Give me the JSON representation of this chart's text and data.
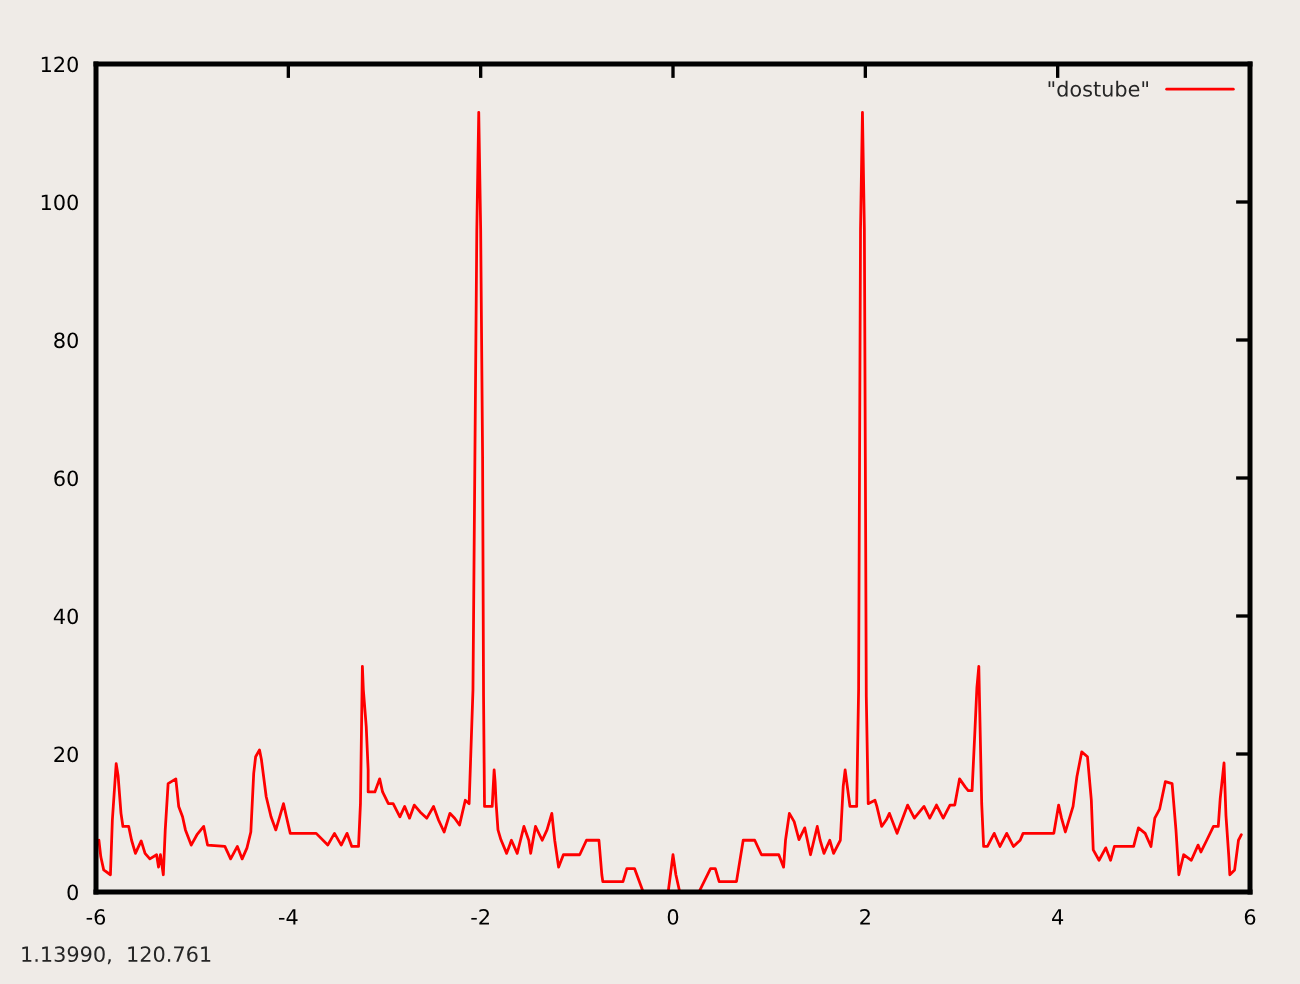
{
  "chart_data": {
    "type": "line",
    "x": [
      -5.97,
      -5.95,
      -5.92,
      -5.85,
      -5.83,
      -5.79,
      -5.77,
      -5.74,
      -5.72,
      -5.66,
      -5.63,
      -5.59,
      -5.53,
      -5.49,
      -5.44,
      -5.37,
      -5.35,
      -5.33,
      -5.3,
      -5.28,
      -5.25,
      -5.17,
      -5.14,
      -5.1,
      -5.07,
      -5.01,
      -4.95,
      -4.88,
      -4.84,
      -4.66,
      -4.6,
      -4.53,
      -4.48,
      -4.43,
      -4.39,
      -4.36,
      -4.34,
      -4.3,
      -4.28,
      -4.23,
      -4.18,
      -4.13,
      -4.09,
      -4.05,
      -4.02,
      -3.98,
      -3.71,
      -3.59,
      -3.52,
      -3.45,
      -3.39,
      -3.34,
      -3.27,
      -3.25,
      -3.23,
      -3.22,
      -3.19,
      -3.17,
      -3.17,
      -3.1,
      -3.05,
      -3.02,
      -2.96,
      -2.91,
      -2.84,
      -2.79,
      -2.74,
      -2.69,
      -2.63,
      -2.56,
      -2.49,
      -2.44,
      -2.38,
      -2.32,
      -2.27,
      -2.22,
      -2.16,
      -2.12,
      -2.08,
      -2.06,
      -2.04,
      -2.02,
      -2.0,
      -1.98,
      -1.97,
      -1.96,
      -1.88,
      -1.86,
      -1.85,
      -1.84,
      -1.82,
      -1.79,
      -1.73,
      -1.68,
      -1.62,
      -1.55,
      -1.5,
      -1.48,
      -1.43,
      -1.36,
      -1.31,
      -1.26,
      -1.23,
      -1.19,
      -1.14,
      -0.97,
      -0.9,
      -0.77,
      -0.74,
      -0.73,
      -0.52,
      -0.48,
      -0.4,
      -0.31,
      -0.05,
      0.0,
      0.03,
      0.07,
      0.27,
      0.39,
      0.44,
      0.48,
      0.66,
      0.73,
      0.85,
      0.92,
      1.1,
      1.15,
      1.17,
      1.21,
      1.26,
      1.31,
      1.37,
      1.43,
      1.5,
      1.53,
      1.57,
      1.63,
      1.67,
      1.74,
      1.77,
      1.79,
      1.84,
      1.91,
      1.93,
      1.94,
      1.95,
      1.97,
      1.99,
      2.0,
      2.01,
      2.03,
      2.1,
      2.12,
      2.17,
      2.22,
      2.25,
      2.33,
      2.44,
      2.51,
      2.61,
      2.67,
      2.74,
      2.81,
      2.88,
      2.93,
      2.98,
      3.04,
      3.07,
      3.11,
      3.14,
      3.16,
      3.18,
      3.19,
      3.21,
      3.23,
      3.27,
      3.34,
      3.4,
      3.47,
      3.54,
      3.61,
      3.64,
      3.96,
      4.01,
      4.04,
      4.08,
      4.16,
      4.2,
      4.25,
      4.31,
      4.35,
      4.37,
      4.43,
      4.5,
      4.55,
      4.59,
      4.79,
      4.84,
      4.91,
      4.97,
      5.01,
      5.06,
      5.12,
      5.19,
      5.23,
      5.26,
      5.31,
      5.39,
      5.46,
      5.49,
      5.55,
      5.62,
      5.67,
      5.69,
      5.73,
      5.75,
      5.78,
      5.79,
      5.84,
      5.88,
      5.91
    ],
    "series": [
      {
        "name": "\"dostube\"",
        "color": "#ff0000",
        "values": [
          7.5,
          5.1,
          3.2,
          2.5,
          10.4,
          18.6,
          16.8,
          11.4,
          9.5,
          9.5,
          7.5,
          5.6,
          7.4,
          5.6,
          4.8,
          5.4,
          3.6,
          5.4,
          2.5,
          9.0,
          15.7,
          16.4,
          12.4,
          10.9,
          9.0,
          6.8,
          8.3,
          9.5,
          6.8,
          6.6,
          4.8,
          6.6,
          4.8,
          6.4,
          8.7,
          17.2,
          19.6,
          20.6,
          19.2,
          13.8,
          10.9,
          9.0,
          10.9,
          12.8,
          10.9,
          8.5,
          8.5,
          6.8,
          8.5,
          6.8,
          8.5,
          6.6,
          6.6,
          12.8,
          32.7,
          29.3,
          24.0,
          17.7,
          14.5,
          14.5,
          16.4,
          14.5,
          12.8,
          12.8,
          10.9,
          12.4,
          10.7,
          12.6,
          11.6,
          10.7,
          12.4,
          10.5,
          8.7,
          11.4,
          10.7,
          9.7,
          13.3,
          12.8,
          29.3,
          63,
          96,
          113,
          96,
          63,
          28.3,
          12.4,
          12.4,
          17.7,
          16.0,
          13.0,
          9.0,
          7.6,
          5.6,
          7.5,
          5.6,
          9.5,
          7.5,
          5.6,
          9.5,
          7.5,
          9.0,
          11.4,
          7.5,
          3.6,
          5.4,
          5.4,
          7.5,
          7.5,
          2.5,
          1.5,
          1.5,
          3.4,
          3.4,
          0,
          0,
          5.4,
          2.5,
          0,
          0,
          3.4,
          3.4,
          1.5,
          1.5,
          7.5,
          7.5,
          5.4,
          5.4,
          3.6,
          7.5,
          11.4,
          10.2,
          7.6,
          9.3,
          5.4,
          9.5,
          7.5,
          5.6,
          7.5,
          5.6,
          7.5,
          15.3,
          17.7,
          12.4,
          12.4,
          29.3,
          63,
          96,
          113,
          96,
          63,
          28.3,
          12.8,
          13.3,
          12.4,
          9.5,
          10.5,
          11.4,
          8.5,
          12.6,
          10.7,
          12.4,
          10.7,
          12.6,
          10.7,
          12.6,
          12.6,
          16.4,
          15.2,
          14.7,
          14.7,
          23.5,
          29.6,
          32.7,
          26.1,
          12.8,
          6.6,
          6.6,
          8.5,
          6.6,
          8.5,
          6.6,
          7.5,
          8.5,
          8.5,
          12.6,
          10.7,
          8.7,
          12.4,
          16.7,
          20.3,
          19.6,
          13.3,
          6.1,
          4.6,
          6.4,
          4.6,
          6.6,
          6.6,
          9.3,
          8.5,
          6.6,
          10.7,
          12.0,
          16.0,
          15.7,
          9.0,
          2.5,
          5.4,
          4.6,
          6.8,
          5.8,
          7.5,
          9.5,
          9.5,
          13.5,
          18.7,
          11.1,
          5.1,
          2.5,
          3.2,
          7.5,
          8.3
        ]
      }
    ],
    "xlim": [
      -6,
      6
    ],
    "xticks": [
      -6,
      -4,
      -2,
      0,
      2,
      4,
      6
    ],
    "ylim": [
      0,
      120
    ],
    "yticks": [
      0,
      20,
      40,
      60,
      80,
      100,
      120
    ],
    "legend": "top right",
    "annotations": [
      "1.13990,  120.761"
    ]
  }
}
